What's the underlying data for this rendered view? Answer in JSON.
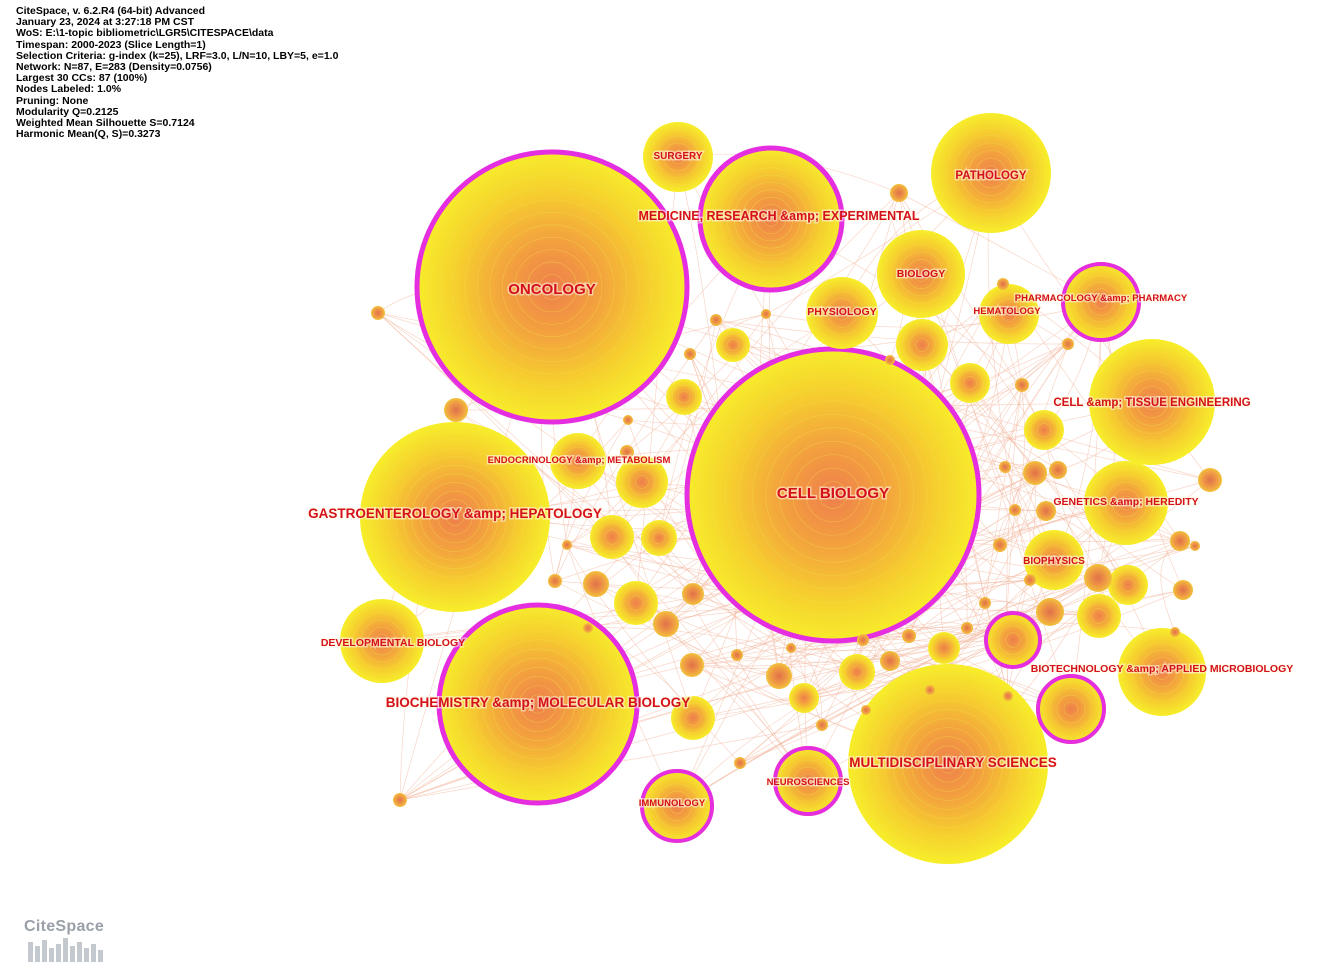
{
  "header_lines": [
    "CiteSpace, v. 6.2.R4 (64-bit) Advanced",
    "January 23, 2024 at 3:27:18 PM CST",
    "WoS: E:\\1-topic bibliometric\\LGR5\\CITESPACE\\data",
    "Timespan: 2000-2023 (Slice Length=1)",
    "Selection Criteria: g-index (k=25), LRF=3.0, L/N=10, LBY=5, e=1.0",
    "Network: N=87, E=283 (Density=0.0756)",
    "Largest 30 CCs: 87 (100%)",
    "Nodes Labeled: 1.0%",
    "Pruning: None",
    "Modularity Q=0.2125",
    "Weighted Mean Silhouette S=0.7124",
    "Harmonic Mean(Q, S)=0.3273"
  ],
  "logo_text": "CiteSpace",
  "colors": {
    "node_outer": "#f6f02a",
    "node_inner": "#f08a4a",
    "centrality_ring": "#e52ee0",
    "label": "#d4101a",
    "edge": "#f2b49a"
  },
  "labels": {
    "oncology": "ONCOLOGY",
    "cell_biology": "CELL BIOLOGY",
    "gastro": "GASTROENTEROLOGY &amp; HEPATOLOGY",
    "biochem": "BIOCHEMISTRY &amp; MOLECULAR BIOLOGY",
    "multidisciplinary": "MULTIDISCIPLINARY SCIENCES",
    "medicine": "MEDICINE, RESEARCH &amp; EXPERIMENTAL",
    "pathology": "PATHOLOGY",
    "surgery": "SURGERY",
    "biology": "BIOLOGY",
    "physiology": "PHYSIOLOGY",
    "hematology": "HEMATOLOGY",
    "pharmacology": "PHARMACOLOGY &amp; PHARMACY",
    "cell_tissue": "CELL &amp; TISSUE ENGINEERING",
    "endocrinology": "ENDOCRINOLOGY &amp; METABOLISM",
    "genetics": "GENETICS &amp; HEREDITY",
    "biophysics": "BIOPHYSICS",
    "developmental": "DEVELOPMENTAL BIOLOGY",
    "biotech": "BIOTECHNOLOGY &amp; APPLIED MICROBIOLOGY",
    "neurosciences": "NEUROSCIENCES",
    "immunology": "IMMUNOLOGY"
  }
}
